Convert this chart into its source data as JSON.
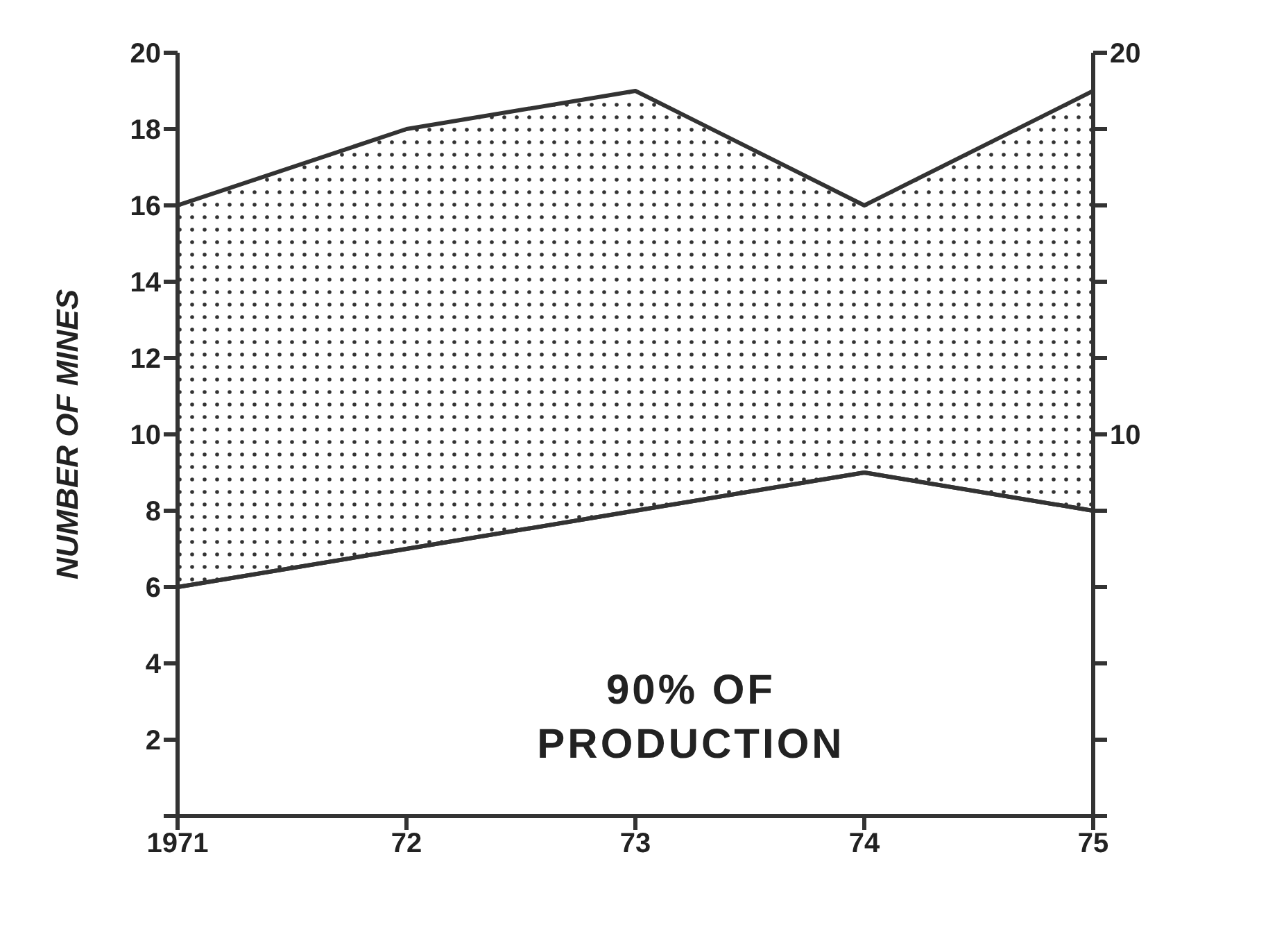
{
  "chart_data": {
    "type": "area",
    "ylabel": "NUMBER OF MINES",
    "annotations": [
      "90% OF PRODUCTION"
    ],
    "x": [
      1971,
      1972,
      1973,
      1974,
      1975
    ],
    "xlim": [
      1971,
      1975
    ],
    "xticks": [
      {
        "value": 1971,
        "label": "1971"
      },
      {
        "value": 1972,
        "label": "72"
      },
      {
        "value": 1973,
        "label": "73"
      },
      {
        "value": 1974,
        "label": "74"
      },
      {
        "value": 1975,
        "label": "75"
      }
    ],
    "ylim": [
      0,
      20
    ],
    "yticks": [
      {
        "value": 0,
        "label": null
      },
      2,
      4,
      6,
      8,
      10,
      12,
      14,
      16,
      18,
      20
    ],
    "y2lim": [
      0,
      20
    ],
    "y2ticks": [
      {
        "value": 0,
        "label": null
      },
      {
        "value": 2,
        "label": null
      },
      {
        "value": 4,
        "label": null
      },
      {
        "value": 6,
        "label": null
      },
      {
        "value": 8,
        "label": null
      },
      10,
      {
        "value": 12,
        "label": null
      },
      {
        "value": 14,
        "label": null
      },
      {
        "value": 16,
        "label": null
      },
      {
        "value": 18,
        "label": null
      },
      20
    ],
    "series": [
      {
        "color": "#333333",
        "values": [
          16,
          18,
          19,
          16,
          19
        ]
      },
      {
        "type": "line",
        "color": "#333333",
        "values": [
          6,
          7,
          8,
          9,
          8
        ]
      }
    ]
  }
}
